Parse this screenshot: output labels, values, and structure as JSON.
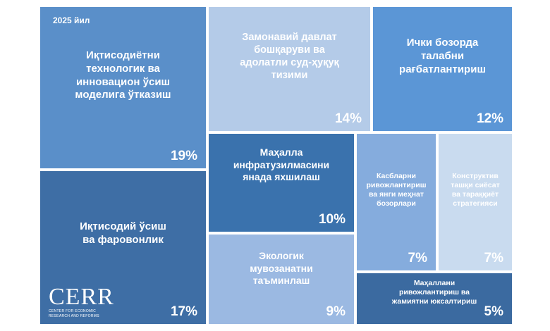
{
  "chart_data": {
    "type": "treemap",
    "year_label": "2025 йил",
    "logo": {
      "name": "CERR",
      "subtitle_line1": "CENTER FOR ECONOMIC",
      "subtitle_line2": "RESEARCH AND REFORMS"
    },
    "items": [
      {
        "label": "Иқтисодиётни\nтехнологик ва\nинновацион ўсиш\nмоделига ўтказиш",
        "value": 19,
        "value_label": "19%",
        "color": "#5a8fc9"
      },
      {
        "label": "Иқтисодий ўсиш\nва фаровонлик",
        "value": 17,
        "value_label": "17%",
        "color": "#3e6ea5"
      },
      {
        "label": "Замонавий давлат\nбошқаруви ва\nадолатли суд-ҳуқуқ\nтизими",
        "value": 14,
        "value_label": "14%",
        "color": "#b4cbe8"
      },
      {
        "label": "Ички бозорда\nталабни\nрағбатлантириш",
        "value": 12,
        "value_label": "12%",
        "color": "#5b96d6"
      },
      {
        "label": "Маҳалла\nинфратузилмасини\nянада яхшилаш",
        "value": 10,
        "value_label": "10%",
        "color": "#3a72ad"
      },
      {
        "label": "Экологик\nмувозанатни\nтаъминлаш",
        "value": 9,
        "value_label": "9%",
        "color": "#9bb9e2"
      },
      {
        "label": "Касбларни\nривожлантириш\nва янги меҳнат\nбозорлари",
        "value": 7,
        "value_label": "7%",
        "color": "#85acdd"
      },
      {
        "label": "Конструктив\nташқи сиёсат\nва тараққиёт\nстратегияси",
        "value": 7,
        "value_label": "7%",
        "color": "#c9dbef"
      },
      {
        "label": "Маҳаллани\nривожлантириш ва\nжамиятни юксалтириш",
        "value": 5,
        "value_label": "5%",
        "color": "#3b6aa0"
      }
    ]
  }
}
